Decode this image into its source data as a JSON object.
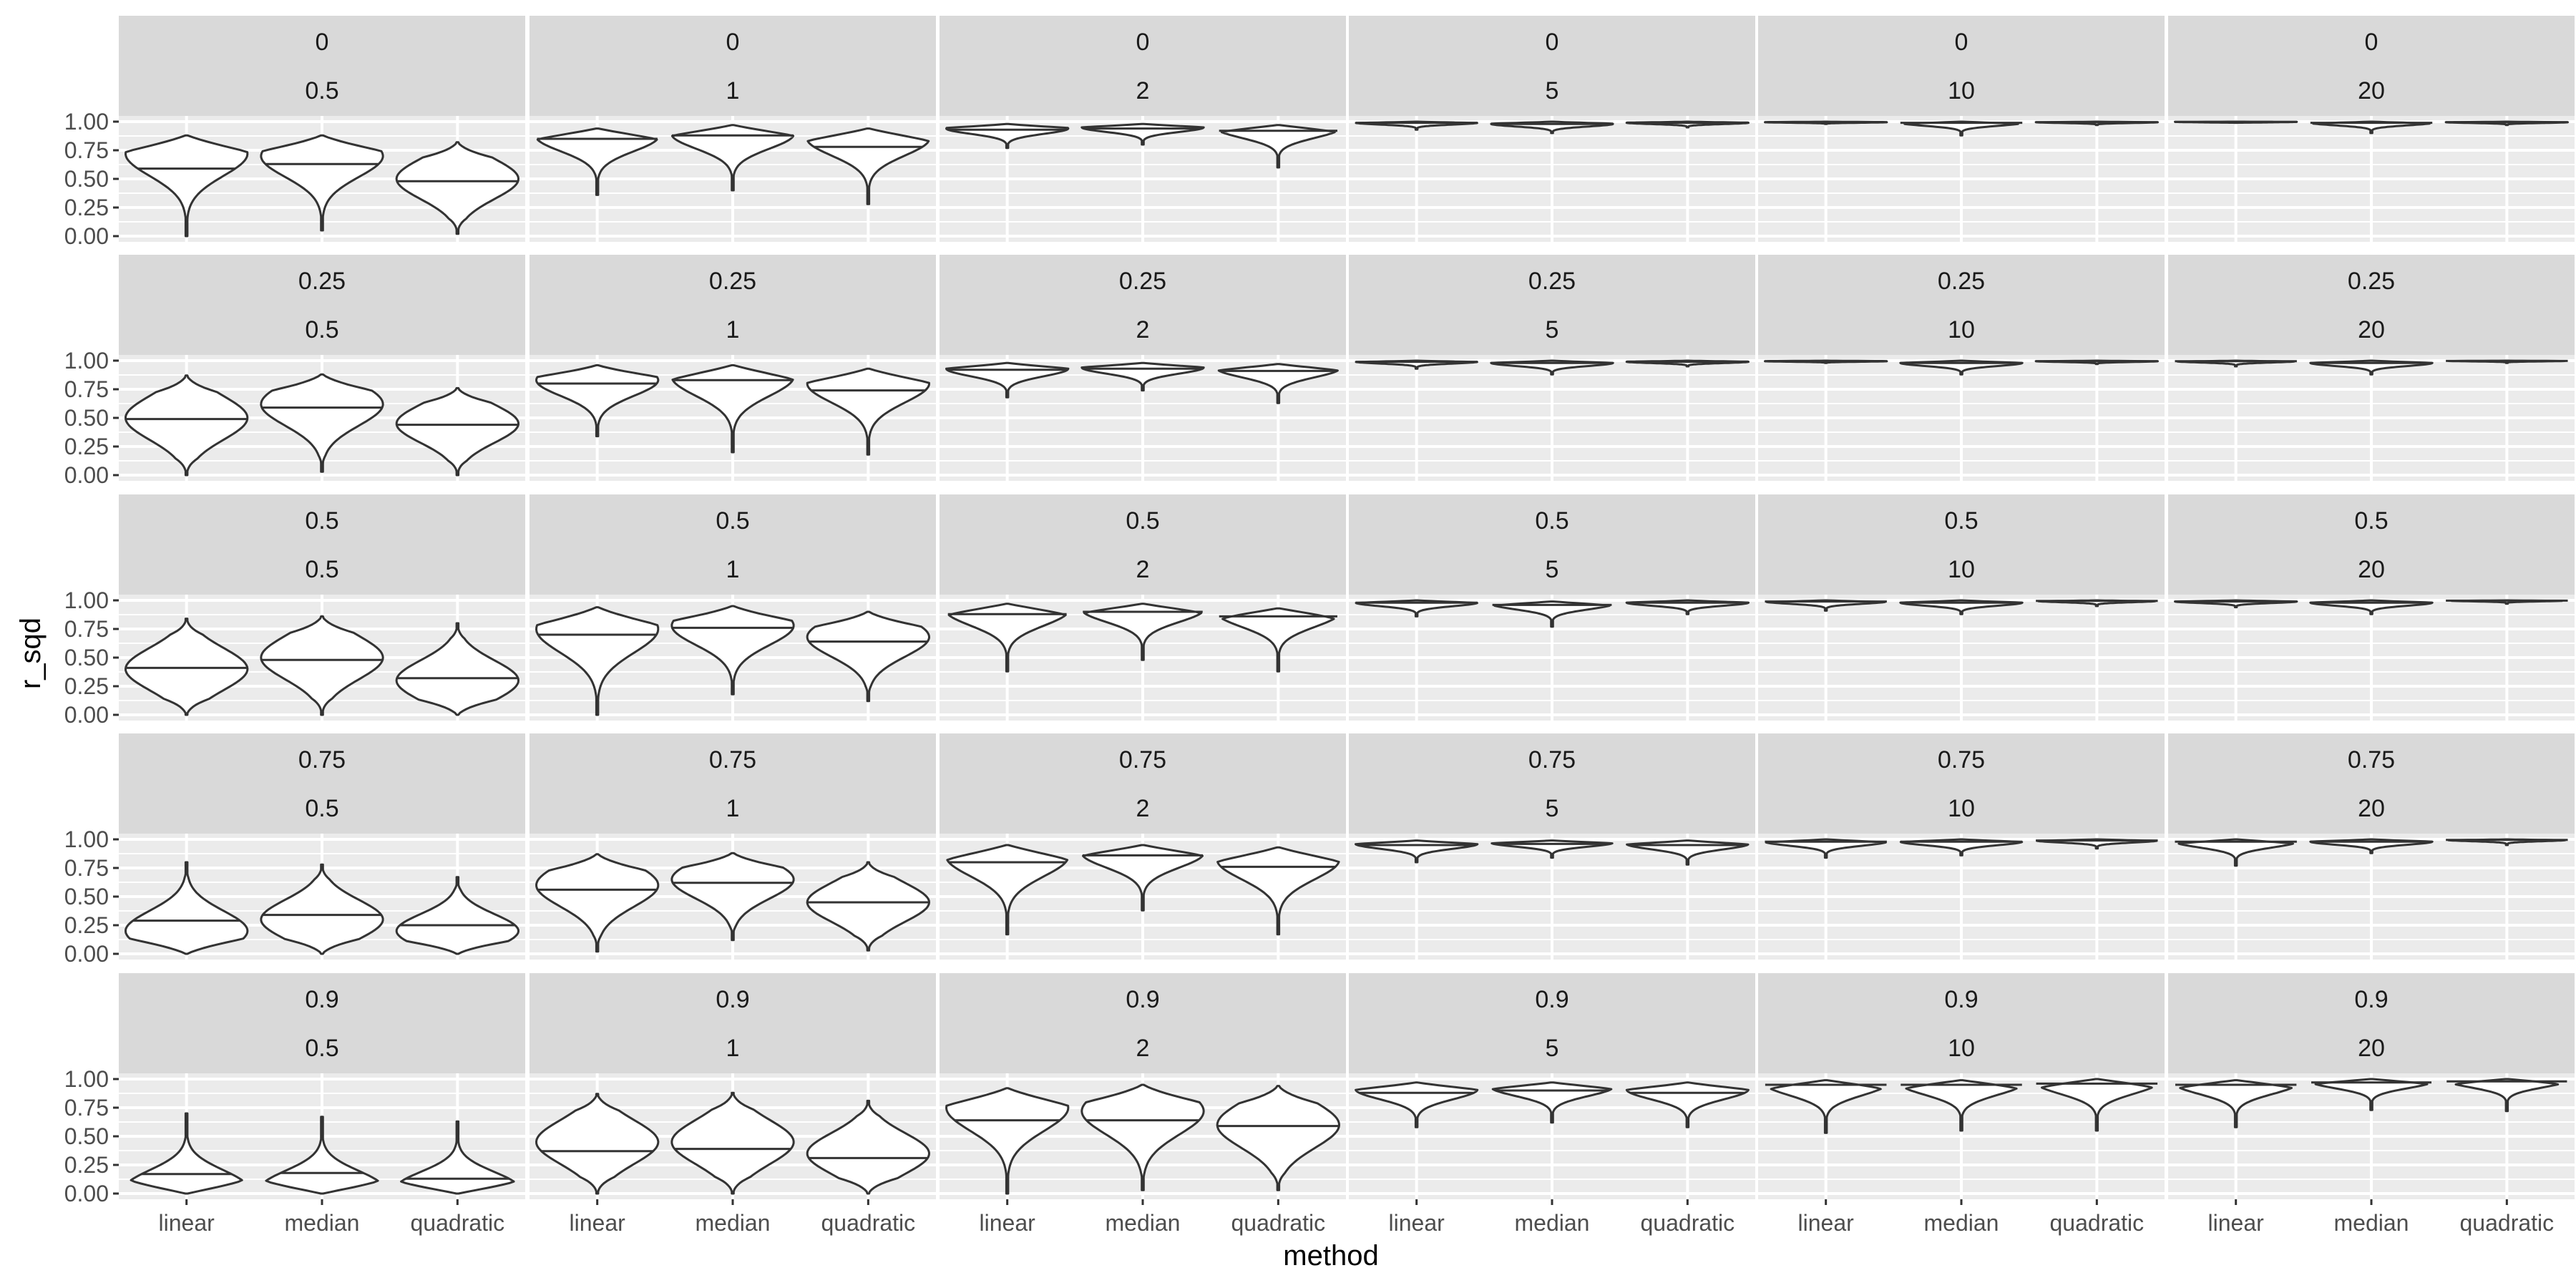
{
  "chart_data": {
    "type": "violin",
    "xlabel": "method",
    "ylabel": "r_sqd",
    "ylim": [
      0,
      1
    ],
    "y_ticks": [
      "0.00",
      "0.25",
      "0.50",
      "0.75",
      "1.00"
    ],
    "y_tick_values": [
      0,
      0.25,
      0.5,
      0.75,
      1.0
    ],
    "methods": [
      "linear",
      "median",
      "quadratic"
    ],
    "facet_rows": [
      "0",
      "0.25",
      "0.5",
      "0.75",
      "0.9"
    ],
    "facet_cols": [
      "0.5",
      "1",
      "2",
      "5",
      "10",
      "20"
    ],
    "grid": true,
    "colors": {
      "panel_bg": "#ebebeb",
      "strip_bg": "#d9d9d9",
      "grid": "#ffffff",
      "violin_fill": "#ffffff",
      "violin_outline": "#333333"
    },
    "panels": [
      [
        {
          "row": "0",
          "col": "0.5",
          "violins": [
            {
              "method": "linear",
              "min": 0.0,
              "max": 0.88,
              "median": 0.59,
              "peak": 0.72
            },
            {
              "method": "median",
              "min": 0.05,
              "max": 0.88,
              "median": 0.63,
              "peak": 0.7
            },
            {
              "method": "quadratic",
              "min": 0.02,
              "max": 0.82,
              "median": 0.48,
              "peak": 0.5
            }
          ]
        },
        {
          "row": "0",
          "col": "1",
          "violins": [
            {
              "method": "linear",
              "min": 0.36,
              "max": 0.94,
              "median": 0.85,
              "peak": 0.87
            },
            {
              "method": "median",
              "min": 0.4,
              "max": 0.97,
              "median": 0.88,
              "peak": 0.89
            },
            {
              "method": "quadratic",
              "min": 0.28,
              "max": 0.94,
              "median": 0.78,
              "peak": 0.85
            }
          ]
        },
        {
          "row": "0",
          "col": "2",
          "violins": [
            {
              "method": "linear",
              "min": 0.77,
              "max": 0.98,
              "median": 0.93,
              "peak": 0.94
            },
            {
              "method": "median",
              "min": 0.8,
              "max": 0.98,
              "median": 0.94,
              "peak": 0.95
            },
            {
              "method": "quadratic",
              "min": 0.6,
              "max": 0.97,
              "median": 0.92,
              "peak": 0.94
            }
          ]
        },
        {
          "row": "0",
          "col": "5",
          "violins": [
            {
              "method": "linear",
              "min": 0.93,
              "max": 1.0,
              "median": 0.99,
              "peak": 0.99
            },
            {
              "method": "median",
              "min": 0.9,
              "max": 1.0,
              "median": 0.98,
              "peak": 0.98
            },
            {
              "method": "quadratic",
              "min": 0.95,
              "max": 1.0,
              "median": 0.99,
              "peak": 0.99
            }
          ]
        },
        {
          "row": "0",
          "col": "10",
          "violins": [
            {
              "method": "linear",
              "min": 0.98,
              "max": 1.0,
              "median": 0.995,
              "peak": 0.995
            },
            {
              "method": "median",
              "min": 0.88,
              "max": 1.0,
              "median": 0.99,
              "peak": 0.99
            },
            {
              "method": "quadratic",
              "min": 0.97,
              "max": 1.0,
              "median": 0.995,
              "peak": 0.995
            }
          ]
        },
        {
          "row": "0",
          "col": "20",
          "violins": [
            {
              "method": "linear",
              "min": 0.99,
              "max": 1.0,
              "median": 0.998,
              "peak": 0.998
            },
            {
              "method": "median",
              "min": 0.9,
              "max": 1.0,
              "median": 0.99,
              "peak": 0.99
            },
            {
              "method": "quadratic",
              "min": 0.97,
              "max": 1.0,
              "median": 0.995,
              "peak": 0.995
            }
          ]
        }
      ],
      [
        {
          "row": "0.25",
          "col": "0.5",
          "violins": [
            {
              "method": "linear",
              "min": 0.0,
              "max": 0.87,
              "median": 0.49,
              "peak": 0.5
            },
            {
              "method": "median",
              "min": 0.03,
              "max": 0.88,
              "median": 0.59,
              "peak": 0.62
            },
            {
              "method": "quadratic",
              "min": 0.0,
              "max": 0.76,
              "median": 0.44,
              "peak": 0.45
            }
          ]
        },
        {
          "row": "0.25",
          "col": "1",
          "violins": [
            {
              "method": "linear",
              "min": 0.34,
              "max": 0.96,
              "median": 0.8,
              "peak": 0.83
            },
            {
              "method": "median",
              "min": 0.2,
              "max": 0.96,
              "median": 0.83,
              "peak": 0.86
            },
            {
              "method": "quadratic",
              "min": 0.18,
              "max": 0.93,
              "median": 0.74,
              "peak": 0.8
            }
          ]
        },
        {
          "row": "0.25",
          "col": "2",
          "violins": [
            {
              "method": "linear",
              "min": 0.68,
              "max": 0.98,
              "median": 0.92,
              "peak": 0.93
            },
            {
              "method": "median",
              "min": 0.74,
              "max": 0.98,
              "median": 0.93,
              "peak": 0.94
            },
            {
              "method": "quadratic",
              "min": 0.63,
              "max": 0.97,
              "median": 0.91,
              "peak": 0.93
            }
          ]
        },
        {
          "row": "0.25",
          "col": "5",
          "violins": [
            {
              "method": "linear",
              "min": 0.93,
              "max": 1.0,
              "median": 0.99,
              "peak": 0.99
            },
            {
              "method": "median",
              "min": 0.88,
              "max": 1.0,
              "median": 0.98,
              "peak": 0.98
            },
            {
              "method": "quadratic",
              "min": 0.95,
              "max": 1.0,
              "median": 0.99,
              "peak": 0.99
            }
          ]
        },
        {
          "row": "0.25",
          "col": "10",
          "violins": [
            {
              "method": "linear",
              "min": 0.98,
              "max": 1.0,
              "median": 0.995,
              "peak": 0.995
            },
            {
              "method": "median",
              "min": 0.88,
              "max": 1.0,
              "median": 0.98,
              "peak": 0.98
            },
            {
              "method": "quadratic",
              "min": 0.97,
              "max": 1.0,
              "median": 0.995,
              "peak": 0.995
            }
          ]
        },
        {
          "row": "0.25",
          "col": "20",
          "violins": [
            {
              "method": "linear",
              "min": 0.95,
              "max": 1.0,
              "median": 0.995,
              "peak": 0.995
            },
            {
              "method": "median",
              "min": 0.88,
              "max": 1.0,
              "median": 0.98,
              "peak": 0.98
            },
            {
              "method": "quadratic",
              "min": 0.98,
              "max": 1.0,
              "median": 0.998,
              "peak": 0.998
            }
          ]
        }
      ],
      [
        {
          "row": "0.5",
          "col": "0.5",
          "violins": [
            {
              "method": "linear",
              "min": 0.0,
              "max": 0.84,
              "median": 0.41,
              "peak": 0.4
            },
            {
              "method": "median",
              "min": 0.0,
              "max": 0.86,
              "median": 0.48,
              "peak": 0.5
            },
            {
              "method": "quadratic",
              "min": 0.0,
              "max": 0.8,
              "median": 0.32,
              "peak": 0.3
            }
          ]
        },
        {
          "row": "0.5",
          "col": "1",
          "violins": [
            {
              "method": "linear",
              "min": 0.0,
              "max": 0.94,
              "median": 0.7,
              "peak": 0.75
            },
            {
              "method": "median",
              "min": 0.18,
              "max": 0.95,
              "median": 0.76,
              "peak": 0.78
            },
            {
              "method": "quadratic",
              "min": 0.12,
              "max": 0.9,
              "median": 0.64,
              "peak": 0.68
            }
          ]
        },
        {
          "row": "0.5",
          "col": "2",
          "violins": [
            {
              "method": "linear",
              "min": 0.38,
              "max": 0.97,
              "median": 0.88,
              "peak": 0.91
            },
            {
              "method": "median",
              "min": 0.48,
              "max": 0.97,
              "median": 0.9,
              "peak": 0.92
            },
            {
              "method": "quadratic",
              "min": 0.38,
              "max": 0.93,
              "median": 0.86,
              "peak": 0.89
            }
          ]
        },
        {
          "row": "0.5",
          "col": "5",
          "violins": [
            {
              "method": "linear",
              "min": 0.86,
              "max": 1.0,
              "median": 0.98,
              "peak": 0.98
            },
            {
              "method": "median",
              "min": 0.77,
              "max": 0.99,
              "median": 0.96,
              "peak": 0.97
            },
            {
              "method": "quadratic",
              "min": 0.88,
              "max": 1.0,
              "median": 0.98,
              "peak": 0.98
            }
          ]
        },
        {
          "row": "0.5",
          "col": "10",
          "violins": [
            {
              "method": "linear",
              "min": 0.91,
              "max": 1.0,
              "median": 0.99,
              "peak": 0.99
            },
            {
              "method": "median",
              "min": 0.88,
              "max": 1.0,
              "median": 0.98,
              "peak": 0.98
            },
            {
              "method": "quadratic",
              "min": 0.95,
              "max": 1.0,
              "median": 0.995,
              "peak": 0.995
            }
          ]
        },
        {
          "row": "0.5",
          "col": "20",
          "violins": [
            {
              "method": "linear",
              "min": 0.94,
              "max": 1.0,
              "median": 0.99,
              "peak": 0.99
            },
            {
              "method": "median",
              "min": 0.88,
              "max": 1.0,
              "median": 0.98,
              "peak": 0.98
            },
            {
              "method": "quadratic",
              "min": 0.97,
              "max": 1.0,
              "median": 0.998,
              "peak": 0.998
            }
          ]
        }
      ],
      [
        {
          "row": "0.75",
          "col": "0.5",
          "violins": [
            {
              "method": "linear",
              "min": 0.0,
              "max": 0.8,
              "median": 0.29,
              "peak": 0.2
            },
            {
              "method": "median",
              "min": 0.0,
              "max": 0.78,
              "median": 0.34,
              "peak": 0.3
            },
            {
              "method": "quadratic",
              "min": 0.0,
              "max": 0.67,
              "median": 0.25,
              "peak": 0.2
            }
          ]
        },
        {
          "row": "0.75",
          "col": "1",
          "violins": [
            {
              "method": "linear",
              "min": 0.02,
              "max": 0.87,
              "median": 0.56,
              "peak": 0.6
            },
            {
              "method": "median",
              "min": 0.12,
              "max": 0.88,
              "median": 0.62,
              "peak": 0.65
            },
            {
              "method": "quadratic",
              "min": 0.03,
              "max": 0.8,
              "median": 0.45,
              "peak": 0.45
            }
          ]
        },
        {
          "row": "0.75",
          "col": "2",
          "violins": [
            {
              "method": "linear",
              "min": 0.17,
              "max": 0.95,
              "median": 0.8,
              "peak": 0.85
            },
            {
              "method": "median",
              "min": 0.38,
              "max": 0.95,
              "median": 0.86,
              "peak": 0.88
            },
            {
              "method": "quadratic",
              "min": 0.17,
              "max": 0.93,
              "median": 0.76,
              "peak": 0.82
            }
          ]
        },
        {
          "row": "0.75",
          "col": "5",
          "violins": [
            {
              "method": "linear",
              "min": 0.8,
              "max": 0.99,
              "median": 0.95,
              "peak": 0.96
            },
            {
              "method": "median",
              "min": 0.84,
              "max": 0.99,
              "median": 0.96,
              "peak": 0.97
            },
            {
              "method": "quadratic",
              "min": 0.78,
              "max": 0.99,
              "median": 0.95,
              "peak": 0.96
            }
          ]
        },
        {
          "row": "0.75",
          "col": "10",
          "violins": [
            {
              "method": "linear",
              "min": 0.84,
              "max": 1.0,
              "median": 0.98,
              "peak": 0.98
            },
            {
              "method": "median",
              "min": 0.86,
              "max": 1.0,
              "median": 0.98,
              "peak": 0.98
            },
            {
              "method": "quadratic",
              "min": 0.92,
              "max": 1.0,
              "median": 0.99,
              "peak": 0.99
            }
          ]
        },
        {
          "row": "0.75",
          "col": "20",
          "violins": [
            {
              "method": "linear",
              "min": 0.77,
              "max": 1.0,
              "median": 0.98,
              "peak": 0.98
            },
            {
              "method": "median",
              "min": 0.88,
              "max": 1.0,
              "median": 0.98,
              "peak": 0.98
            },
            {
              "method": "quadratic",
              "min": 0.95,
              "max": 1.0,
              "median": 0.995,
              "peak": 0.995
            }
          ]
        }
      ],
      [
        {
          "row": "0.9",
          "col": "0.5",
          "violins": [
            {
              "method": "linear",
              "min": 0.0,
              "max": 0.7,
              "median": 0.17,
              "peak": 0.05
            },
            {
              "method": "median",
              "min": 0.0,
              "max": 0.67,
              "median": 0.18,
              "peak": 0.05
            },
            {
              "method": "quadratic",
              "min": 0.0,
              "max": 0.63,
              "median": 0.13,
              "peak": 0.05
            }
          ]
        },
        {
          "row": "0.9",
          "col": "1",
          "violins": [
            {
              "method": "linear",
              "min": 0.0,
              "max": 0.87,
              "median": 0.37,
              "peak": 0.45
            },
            {
              "method": "median",
              "min": 0.0,
              "max": 0.88,
              "median": 0.39,
              "peak": 0.45
            },
            {
              "method": "quadratic",
              "min": 0.0,
              "max": 0.81,
              "median": 0.31,
              "peak": 0.35
            }
          ]
        },
        {
          "row": "0.9",
          "col": "2",
          "violins": [
            {
              "method": "linear",
              "min": 0.0,
              "max": 0.92,
              "median": 0.64,
              "peak": 0.75
            },
            {
              "method": "median",
              "min": 0.03,
              "max": 0.95,
              "median": 0.64,
              "peak": 0.72
            },
            {
              "method": "quadratic",
              "min": 0.03,
              "max": 0.94,
              "median": 0.59,
              "peak": 0.6
            }
          ]
        },
        {
          "row": "0.9",
          "col": "5",
          "violins": [
            {
              "method": "linear",
              "min": 0.58,
              "max": 0.97,
              "median": 0.88,
              "peak": 0.91
            },
            {
              "method": "median",
              "min": 0.62,
              "max": 0.97,
              "median": 0.9,
              "peak": 0.93
            },
            {
              "method": "quadratic",
              "min": 0.58,
              "max": 0.97,
              "median": 0.88,
              "peak": 0.91
            }
          ]
        },
        {
          "row": "0.9",
          "col": "10",
          "violins": [
            {
              "method": "linear",
              "min": 0.53,
              "max": 0.99,
              "median": 0.95,
              "peak": 0.96
            },
            {
              "method": "median",
              "min": 0.55,
              "max": 0.99,
              "median": 0.95,
              "peak": 0.96
            },
            {
              "method": "quadratic",
              "min": 0.55,
              "max": 1.0,
              "median": 0.96,
              "peak": 0.97
            }
          ]
        },
        {
          "row": "0.9",
          "col": "20",
          "violins": [
            {
              "method": "linear",
              "min": 0.58,
              "max": 0.99,
              "median": 0.95,
              "peak": 0.96
            },
            {
              "method": "median",
              "min": 0.73,
              "max": 1.0,
              "median": 0.97,
              "peak": 0.98
            },
            {
              "method": "quadratic",
              "min": 0.72,
              "max": 1.0,
              "median": 0.98,
              "peak": 0.99
            }
          ]
        }
      ]
    ]
  }
}
